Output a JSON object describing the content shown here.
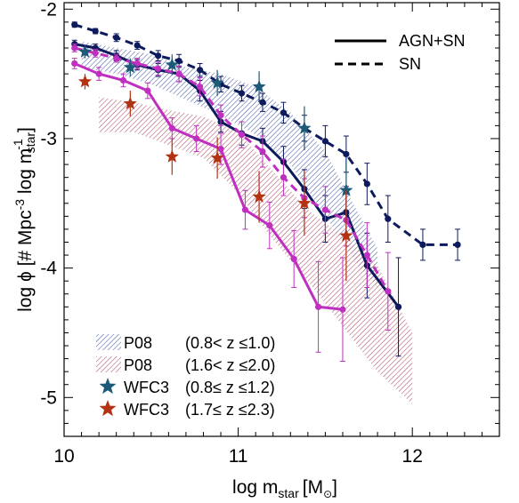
{
  "chart_data": {
    "type": "line",
    "xlabel": "log m",
    "xlabel_sub": "star",
    "xlabel_unit": "[M",
    "xlabel_sun_symbol": "⊙",
    "xlabel_close": "]",
    "ylabel_main": "log ϕ [# Mpc",
    "ylabel_exp1": "-3",
    "ylabel_mid": " log m",
    "ylabel_exp2": "-1",
    "ylabel_sub": "star",
    "ylabel_close": "]",
    "xlim": [
      10.0,
      12.5
    ],
    "ylim": [
      -5.3,
      -1.95
    ],
    "xticks": [
      {
        "value": 10,
        "label": "10"
      },
      {
        "value": 11,
        "label": "11"
      },
      {
        "value": 12,
        "label": "12"
      }
    ],
    "yticks": [
      {
        "value": -2,
        "label": "-2"
      },
      {
        "value": -3,
        "label": "-3"
      },
      {
        "value": -4,
        "label": "-4"
      },
      {
        "value": -5,
        "label": "-5"
      }
    ],
    "line_style_legend": {
      "position": "top-right",
      "entries": [
        {
          "label": "AGN+SN",
          "style": "solid"
        },
        {
          "label": "SN",
          "style": "dashed"
        }
      ]
    },
    "data_legend": {
      "position": "bottom-left",
      "entries": [
        {
          "kind": "hatch",
          "color": "#4a5ba8",
          "name": "P08",
          "range": "(0.8< z ≤1.0)"
        },
        {
          "kind": "hatch",
          "color": "#b0506a",
          "name": "P08",
          "range": "(1.6< z ≤2.0)"
        },
        {
          "kind": "star",
          "color": "#1d5a78",
          "name": "WFC3",
          "range": "(0.8≤ z ≤1.2)"
        },
        {
          "kind": "star",
          "color": "#b23212",
          "name": "WFC3",
          "range": "(1.7≤ z ≤2.3)"
        }
      ]
    },
    "bands": [
      {
        "color": "#4a5ba8",
        "x": [
          10.1,
          10.3,
          10.5,
          10.7,
          10.9,
          11.1,
          11.3,
          11.5,
          11.7,
          11.8
        ],
        "upper": [
          -2.25,
          -2.3,
          -2.35,
          -2.45,
          -2.5,
          -2.6,
          -2.8,
          -3.1,
          -3.6,
          -3.85
        ],
        "lower": [
          -2.45,
          -2.5,
          -2.58,
          -2.7,
          -2.82,
          -2.97,
          -3.2,
          -3.6,
          -4.0,
          -4.15
        ]
      },
      {
        "color": "#b0506a",
        "x": [
          10.2,
          10.4,
          10.6,
          10.8,
          11.0,
          11.2,
          11.4,
          11.6,
          11.8,
          12.0
        ],
        "upper": [
          -2.68,
          -2.72,
          -2.78,
          -2.83,
          -2.95,
          -3.25,
          -3.55,
          -3.75,
          -3.98,
          -4.5
        ],
        "lower": [
          -2.95,
          -2.95,
          -3.05,
          -3.15,
          -3.42,
          -3.78,
          -4.1,
          -4.45,
          -4.8,
          -5.05
        ]
      }
    ],
    "series": [
      {
        "name": "AGN+SN",
        "group": "navy",
        "style": "solid",
        "color": "#0d1a5c",
        "x": [
          10.06,
          10.18,
          10.3,
          10.42,
          10.54,
          10.66,
          10.78,
          10.9,
          11.02,
          11.14,
          11.26,
          11.38,
          11.5,
          11.62,
          11.74,
          11.92
        ],
        "y": [
          -2.27,
          -2.3,
          -2.36,
          -2.43,
          -2.47,
          -2.5,
          -2.63,
          -2.87,
          -2.96,
          -3.02,
          -3.18,
          -3.39,
          -3.62,
          -3.57,
          -3.98,
          -4.3
        ],
        "err": [
          0.03,
          0.03,
          0.04,
          0.04,
          0.05,
          0.06,
          0.08,
          0.08,
          0.09,
          0.1,
          0.12,
          0.15,
          0.18,
          0.2,
          0.25,
          0.38
        ]
      },
      {
        "name": "SN",
        "group": "navy",
        "style": "dashed",
        "color": "#0d1a5c",
        "x": [
          10.06,
          10.18,
          10.3,
          10.42,
          10.54,
          10.66,
          10.78,
          10.9,
          11.02,
          11.14,
          11.26,
          11.38,
          11.5,
          11.62,
          11.74,
          11.86,
          12.06,
          12.26
        ],
        "y": [
          -2.12,
          -2.17,
          -2.22,
          -2.28,
          -2.36,
          -2.4,
          -2.47,
          -2.58,
          -2.65,
          -2.72,
          -2.8,
          -2.92,
          -3.02,
          -3.12,
          -3.35,
          -3.62,
          -3.82,
          -3.82
        ],
        "err": [
          0.02,
          0.02,
          0.03,
          0.03,
          0.04,
          0.05,
          0.05,
          0.06,
          0.06,
          0.07,
          0.08,
          0.1,
          0.12,
          0.14,
          0.16,
          0.18,
          0.12,
          0.12
        ]
      },
      {
        "name": "AGN+SN",
        "group": "magenta",
        "style": "solid",
        "color": "#c030c0",
        "x": [
          10.06,
          10.2,
          10.34,
          10.48,
          10.62,
          10.76,
          10.9,
          11.04,
          11.18,
          11.32,
          11.46,
          11.6
        ],
        "y": [
          -2.42,
          -2.5,
          -2.55,
          -2.63,
          -2.92,
          -3.0,
          -3.08,
          -3.55,
          -3.67,
          -3.93,
          -4.3,
          -4.32
        ],
        "err": [
          0.04,
          0.05,
          0.05,
          0.06,
          0.08,
          0.1,
          0.12,
          0.15,
          0.18,
          0.22,
          0.35,
          0.4
        ]
      },
      {
        "name": "SN",
        "group": "magenta",
        "style": "dashed",
        "color": "#c030c0",
        "x": [
          10.06,
          10.18,
          10.3,
          10.42,
          10.54,
          10.66,
          10.78,
          10.9,
          11.02,
          11.14,
          11.26,
          11.38,
          11.5,
          11.62,
          11.74,
          11.86
        ],
        "y": [
          -2.3,
          -2.34,
          -2.38,
          -2.42,
          -2.46,
          -2.5,
          -2.6,
          -2.82,
          -2.97,
          -3.1,
          -3.3,
          -3.46,
          -3.55,
          -3.63,
          -3.9,
          -4.18
        ],
        "err": [
          0.03,
          0.03,
          0.03,
          0.04,
          0.05,
          0.06,
          0.07,
          0.08,
          0.1,
          0.12,
          0.14,
          0.15,
          0.18,
          0.2,
          0.25,
          0.3
        ]
      }
    ],
    "stars": [
      {
        "group": "blue",
        "color": "#1d5a78",
        "x": [
          10.12,
          10.38,
          10.62,
          10.88,
          11.12,
          11.38,
          11.62
        ],
        "y": [
          -2.33,
          -2.45,
          -2.43,
          -2.57,
          -2.6,
          -2.92,
          -3.4
        ],
        "err": [
          0.05,
          0.07,
          0.08,
          0.1,
          0.12,
          0.17,
          0.25
        ]
      },
      {
        "group": "red",
        "color": "#b23212",
        "x": [
          10.12,
          10.38,
          10.62,
          10.88,
          11.12,
          11.38,
          11.62
        ],
        "y": [
          -2.56,
          -2.73,
          -3.14,
          -3.15,
          -3.45,
          -3.5,
          -3.75
        ],
        "err": [
          0.06,
          0.1,
          0.14,
          0.16,
          0.2,
          0.25,
          0.35
        ]
      }
    ]
  }
}
